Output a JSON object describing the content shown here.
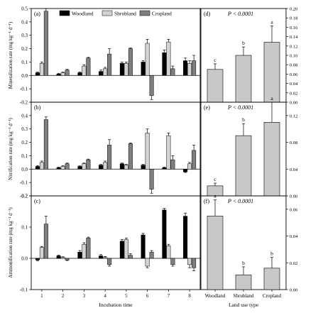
{
  "figure": {
    "legend": [
      {
        "name": "Woodland",
        "color": "#000000"
      },
      {
        "name": "Shrubland",
        "color": "#d3d3d3"
      },
      {
        "name": "Cropland",
        "color": "#7f7f7f"
      }
    ],
    "left_xlabel": "Incubation time",
    "right_xlabel": "Land use type"
  },
  "chart_data": [
    {
      "panel": "(a)",
      "type": "bar",
      "ylabel": "Mineralization rate (mg kg⁻¹ d⁻¹)",
      "categories": [
        "1",
        "2",
        "3",
        "4",
        "5",
        "6",
        "7",
        "8"
      ],
      "ylim": [
        -0.2,
        0.5
      ],
      "yticks": [
        "-0.2",
        "-0.1",
        "0.0",
        "0.1",
        "0.2",
        "0.3",
        "0.4",
        "0.5"
      ],
      "series": [
        {
          "name": "Woodland",
          "values": [
            0.02,
            0.01,
            0.02,
            0.03,
            0.09,
            0.1,
            0.17,
            0.11
          ],
          "errors": [
            0.005,
            0.005,
            0.005,
            0.01,
            0.01,
            0.01,
            0.02,
            0.02
          ]
        },
        {
          "name": "Shrubland",
          "values": [
            0.09,
            0.02,
            0.07,
            0.05,
            0.09,
            0.24,
            0.25,
            0.09
          ],
          "errors": [
            0.01,
            0.005,
            0.01,
            0.01,
            0.01,
            0.03,
            0.02,
            0.02
          ]
        },
        {
          "name": "Cropland",
          "values": [
            0.48,
            0.04,
            0.13,
            0.16,
            0.2,
            -0.15,
            0.05,
            0.11
          ],
          "errors": [
            0.02,
            0.005,
            0.005,
            0.04,
            0.005,
            0.03,
            0.02,
            0.04
          ]
        }
      ]
    },
    {
      "panel": "(b)",
      "type": "bar",
      "ylabel": "Nitrification rate (mg kg⁻¹ d⁻¹)",
      "categories": [
        "1",
        "2",
        "3",
        "4",
        "5",
        "6",
        "7",
        "8"
      ],
      "ylim": [
        -0.2,
        0.5
      ],
      "yticks": [
        "-0.2",
        "-0.1",
        "0.0",
        "0.1",
        "0.2",
        "0.3",
        "0.4",
        "0.5"
      ],
      "series": [
        {
          "name": "Woodland",
          "values": [
            0.02,
            0.01,
            0.02,
            0.03,
            0.04,
            0.03,
            0.01,
            -0.02
          ],
          "errors": [
            0.005,
            0.005,
            0.005,
            0.005,
            0.005,
            0.005,
            0.005,
            0.005
          ]
        },
        {
          "name": "Shrubland",
          "values": [
            0.05,
            0.02,
            0.04,
            0.05,
            0.03,
            0.27,
            0.25,
            0.04
          ],
          "errors": [
            0.01,
            0.005,
            0.005,
            0.01,
            0.005,
            0.03,
            0.02,
            0.01
          ]
        },
        {
          "name": "Cropland",
          "values": [
            0.37,
            0.04,
            0.07,
            0.18,
            0.19,
            -0.15,
            0.07,
            0.14
          ],
          "errors": [
            0.02,
            0.005,
            0.005,
            0.04,
            0.005,
            0.03,
            0.03,
            0.04
          ]
        }
      ]
    },
    {
      "panel": "(c)",
      "type": "bar",
      "ylabel": "Ammonification rate (mg kg⁻¹ d⁻¹)",
      "categories": [
        "1",
        "2",
        "3",
        "4",
        "5",
        "6",
        "7",
        "8"
      ],
      "ylim": [
        -0.1,
        0.2
      ],
      "yticks": [
        "-0.1",
        "0.0",
        "0.1",
        "0.2"
      ],
      "series": [
        {
          "name": "Woodland",
          "values": [
            -0.005,
            0.008,
            0.02,
            0.008,
            0.055,
            0.075,
            0.155,
            0.135
          ],
          "errors": [
            0.003,
            0.002,
            0.005,
            0.004,
            0.005,
            0.005,
            0.005,
            0.01
          ]
        },
        {
          "name": "Shrubland",
          "values": [
            0.035,
            0.003,
            0.045,
            0.003,
            0.06,
            -0.025,
            0.04,
            -0.02
          ],
          "errors": [
            0.003,
            0.002,
            0.005,
            0.003,
            0.005,
            0.005,
            0.005,
            0.01
          ]
        },
        {
          "name": "Cropland",
          "values": [
            0.11,
            -0.005,
            0.065,
            -0.02,
            0.01,
            0.02,
            -0.02,
            -0.03
          ],
          "errors": [
            0.025,
            0.002,
            0.003,
            0.005,
            0.005,
            0.005,
            0.005,
            0.01
          ]
        }
      ]
    },
    {
      "panel": "(d)",
      "type": "bar",
      "annotation": "P < 0.0001",
      "categories": [
        "Woodland",
        "Shrubland",
        "Cropland"
      ],
      "ylim": [
        0,
        0.2
      ],
      "yticks": [
        "0.00",
        "0.02",
        "0.04",
        "0.06",
        "0.08",
        "0.10",
        "0.12",
        "0.14",
        "0.16",
        "0.18",
        "0.20"
      ],
      "values": [
        0.07,
        0.1,
        0.128
      ],
      "errors": [
        0.012,
        0.018,
        0.035
      ],
      "letters": [
        "c",
        "b",
        "a"
      ]
    },
    {
      "panel": "(e)",
      "type": "bar",
      "annotation": "P < 0.0001",
      "categories": [
        "Woodland",
        "Shrubland",
        "Cropland"
      ],
      "ylim": [
        0,
        0.14
      ],
      "yticks": [
        "0.00",
        "0.04",
        "0.08",
        "0.12"
      ],
      "values": [
        0.015,
        0.09,
        0.11
      ],
      "errors": [
        0.004,
        0.018,
        0.03
      ],
      "letters": [
        "c",
        "b",
        "a"
      ]
    },
    {
      "panel": "(f)",
      "type": "bar",
      "annotation": "P < 0.0001",
      "categories": [
        "Woodland",
        "Shrubland",
        "Cropland"
      ],
      "ylim": [
        0,
        0.07
      ],
      "yticks": [
        "0.00",
        "0.02",
        "0.04",
        "0.06"
      ],
      "values": [
        0.055,
        0.011,
        0.016
      ],
      "errors": [
        0.012,
        0.006,
        0.008
      ],
      "letters": [
        "a",
        "b",
        "b"
      ]
    }
  ]
}
